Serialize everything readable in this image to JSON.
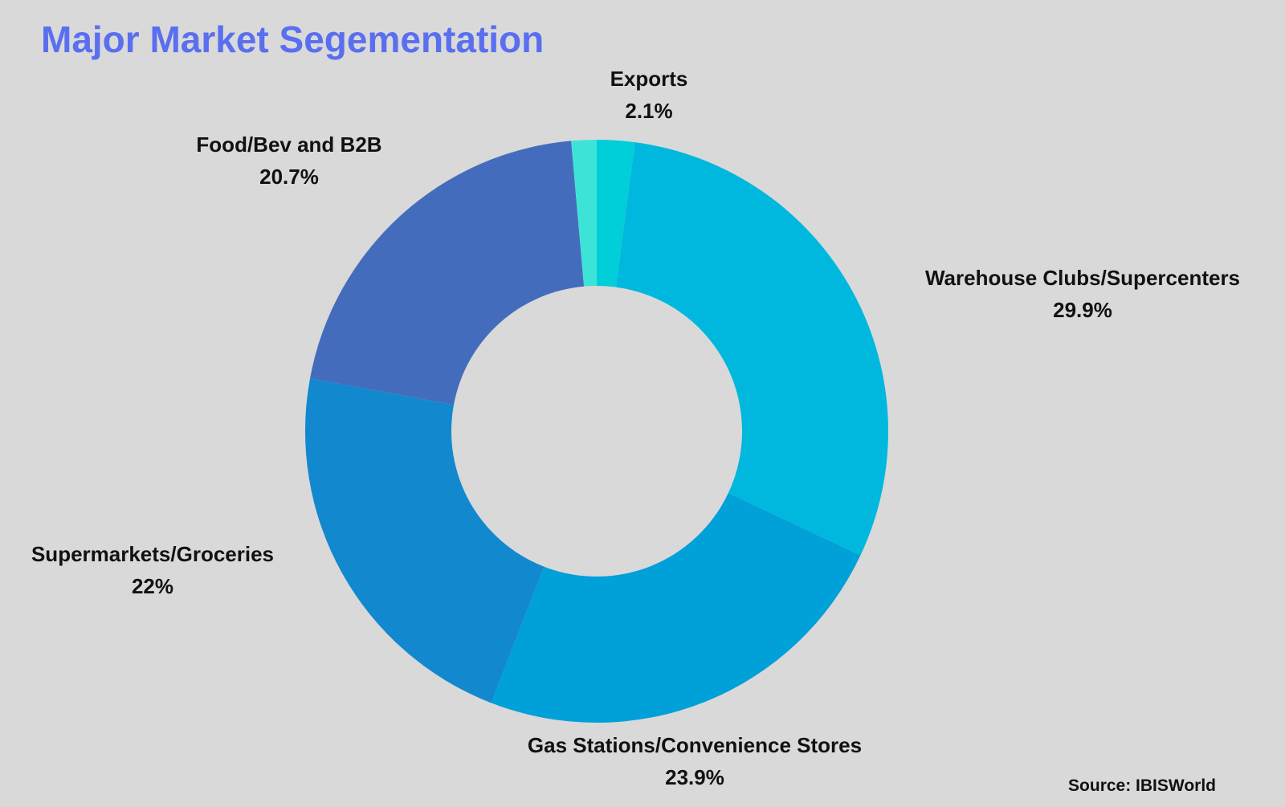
{
  "chart_data": {
    "type": "pie",
    "title": "Major Market Segementation",
    "source": "Source: IBISWorld",
    "donut": true,
    "slices": [
      {
        "label": "Exports",
        "value": 2.1,
        "value_text": "2.1%",
        "color": "#00cfd9"
      },
      {
        "label": "Warehouse Clubs/Supercenters",
        "value": 29.9,
        "value_text": "29.9%",
        "color": "#00b8de"
      },
      {
        "label": "Gas Stations/Convenience Stores",
        "value": 23.9,
        "value_text": "23.9%",
        "color": "#00a0d8"
      },
      {
        "label": "Supermarkets/Groceries",
        "value": 22,
        "value_text": "22%",
        "color": "#1288cf"
      },
      {
        "label": "Food/Bev and B2B",
        "value": 20.7,
        "value_text": "20.7%",
        "color": "#436dbc"
      },
      {
        "label": "",
        "value": 1.4,
        "value_text": "",
        "color": "#3ee3d8"
      }
    ]
  }
}
